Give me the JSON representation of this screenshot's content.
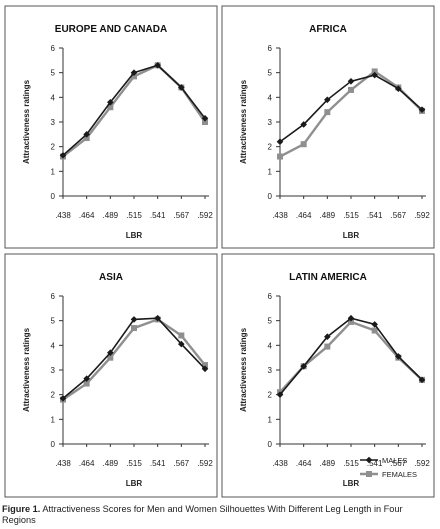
{
  "legend": {
    "males": "MALES",
    "females": "FEMALES"
  },
  "colors": {
    "males": "#1a1a1a",
    "females": "#8f8f8f"
  },
  "caption": {
    "label": "Figure 1.",
    "text": "Attractiveness Scores for Men and Women Silhouettes With Different Leg Length in Four Regions"
  },
  "chart_data": [
    {
      "type": "line",
      "title": "EUROPE AND CANADA",
      "xlabel": "LBR",
      "ylabel": "Attractiveness ratings",
      "categories": [
        ".438",
        ".464",
        ".489",
        ".515",
        ".541",
        ".567",
        ".592"
      ],
      "ylim": [
        0,
        6
      ],
      "yticks": [
        "0",
        "1",
        "2",
        "3",
        "4",
        "5",
        "6"
      ],
      "series": [
        {
          "name": "MALES",
          "values": [
            1.65,
            2.5,
            3.8,
            5.0,
            5.3,
            4.4,
            3.15
          ]
        },
        {
          "name": "FEMALES",
          "values": [
            1.6,
            2.35,
            3.6,
            4.85,
            5.3,
            4.4,
            3.0
          ]
        }
      ]
    },
    {
      "type": "line",
      "title": "AFRICA",
      "xlabel": "LBR",
      "ylabel": "Attractiveness ratings",
      "categories": [
        ".438",
        ".464",
        ".489",
        ".515",
        ".541",
        ".567",
        ".592"
      ],
      "ylim": [
        0,
        6
      ],
      "yticks": [
        "0",
        "1",
        "2",
        "3",
        "4",
        "5",
        "6"
      ],
      "series": [
        {
          "name": "MALES",
          "values": [
            2.2,
            2.9,
            3.9,
            4.65,
            4.9,
            4.35,
            3.5
          ]
        },
        {
          "name": "FEMALES",
          "values": [
            1.6,
            2.1,
            3.4,
            4.3,
            5.05,
            4.4,
            3.45
          ]
        }
      ]
    },
    {
      "type": "line",
      "title": "ASIA",
      "xlabel": "LBR",
      "ylabel": "Attractiveness ratings",
      "categories": [
        ".438",
        ".464",
        ".489",
        ".515",
        ".541",
        ".567",
        ".592"
      ],
      "ylim": [
        0,
        6
      ],
      "yticks": [
        "0",
        "1",
        "2",
        "3",
        "4",
        "5",
        "6"
      ],
      "series": [
        {
          "name": "MALES",
          "values": [
            1.85,
            2.65,
            3.7,
            5.05,
            5.1,
            4.05,
            3.05
          ]
        },
        {
          "name": "FEMALES",
          "values": [
            1.8,
            2.45,
            3.5,
            4.7,
            5.05,
            4.4,
            3.2
          ]
        }
      ]
    },
    {
      "type": "line",
      "title": "LATIN AMERICA",
      "xlabel": "LBR",
      "ylabel": "Attractiveness ratings",
      "categories": [
        ".438",
        ".464",
        ".489",
        ".515",
        ".541",
        ".567",
        ".592"
      ],
      "ylim": [
        0,
        6
      ],
      "yticks": [
        "0",
        "1",
        "2",
        "3",
        "4",
        "5",
        "6"
      ],
      "legend_position": "bottom-right",
      "series": [
        {
          "name": "MALES",
          "values": [
            2.0,
            3.15,
            4.35,
            5.1,
            4.85,
            3.55,
            2.6
          ]
        },
        {
          "name": "FEMALES",
          "values": [
            2.1,
            3.15,
            3.95,
            4.95,
            4.6,
            3.5,
            2.6
          ]
        }
      ]
    }
  ]
}
